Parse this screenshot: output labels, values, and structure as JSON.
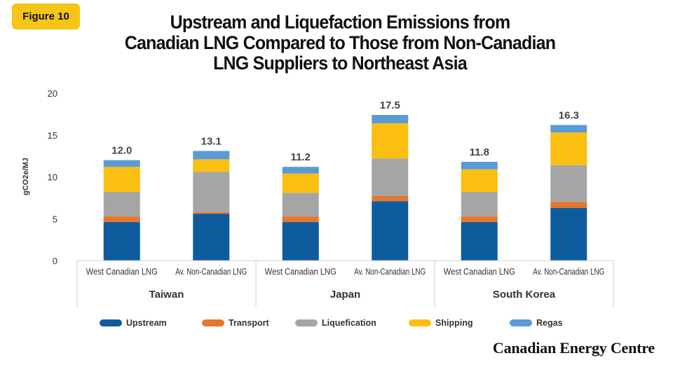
{
  "figure_badge": "Figure 10",
  "title_lines": [
    "Upstream and Liquefaction Emissions from",
    "Canadian LNG Compared to Those from Non-Canadian",
    "LNG Suppliers to Northeast Asia"
  ],
  "brand": "Canadian Energy Centre",
  "chart_data": {
    "type": "bar",
    "stacked": true,
    "ylabel": "gCO2e/MJ",
    "ylim": [
      0,
      20
    ],
    "yticks": [
      0,
      5,
      10,
      15,
      20
    ],
    "groups": [
      "Taiwan",
      "Japan",
      "South Korea"
    ],
    "categories": [
      "West Canadian LNG",
      "Av. Non-Canadian LNG",
      "West Canadian LNG",
      "Av. Non-Canadian LNG",
      "West Canadian LNG",
      "Av. Non-Canadian LNG"
    ],
    "totals": [
      "12.0",
      "13.1",
      "11.2",
      "17.5",
      "11.8",
      "16.3"
    ],
    "series": [
      {
        "name": "Upstream",
        "color": "#0e5c9e",
        "values": [
          4.6,
          5.6,
          4.6,
          7.1,
          4.6,
          6.3
        ]
      },
      {
        "name": "Transport",
        "color": "#e8762c",
        "values": [
          0.7,
          0.2,
          0.7,
          0.6,
          0.7,
          0.7
        ]
      },
      {
        "name": "Liquefication",
        "color": "#a5a5a5",
        "values": [
          2.9,
          4.8,
          2.8,
          4.5,
          2.9,
          4.4
        ]
      },
      {
        "name": "Shipping",
        "color": "#fbbf11",
        "values": [
          3.0,
          1.5,
          2.3,
          4.2,
          2.7,
          3.9
        ]
      },
      {
        "name": "Regas",
        "color": "#5b9bd5",
        "values": [
          0.8,
          1.0,
          0.8,
          1.0,
          0.9,
          0.9
        ]
      }
    ],
    "legend_position": "bottom",
    "grid": false
  }
}
